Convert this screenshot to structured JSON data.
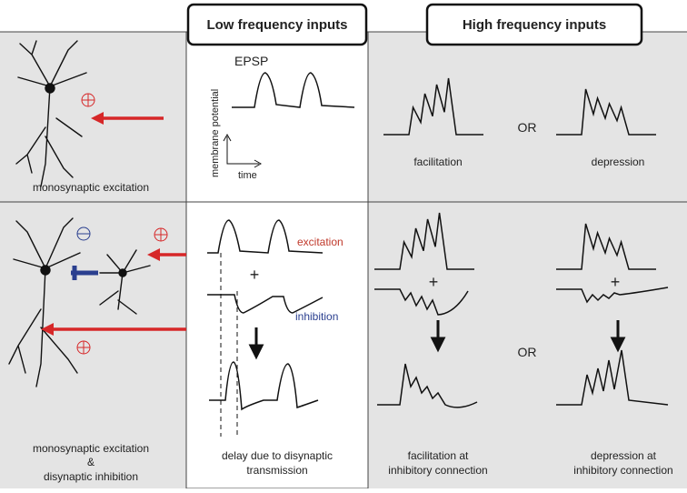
{
  "header": {
    "low": "Low frequency inputs",
    "high": "High frequency inputs"
  },
  "top_row": {
    "left_label": "monosynaptic excitation",
    "epsp": "EPSP",
    "y_axis": "membrane potential",
    "x_axis": "time",
    "facilitation": "facilitation",
    "or": "OR",
    "depression": "depression"
  },
  "bottom_row": {
    "left_label": [
      "monosynaptic excitation",
      "&",
      "disynaptic inhibition"
    ],
    "excitation": "excitation",
    "plus": "+",
    "inhibition": "inhibition",
    "delay_label": [
      "delay due to disynaptic",
      "transmission"
    ],
    "facilitation_label": [
      "facilitation at",
      "inhibitory connection"
    ],
    "or": "OR",
    "depression_label": [
      "depression at",
      "inhibitory connection"
    ]
  }
}
